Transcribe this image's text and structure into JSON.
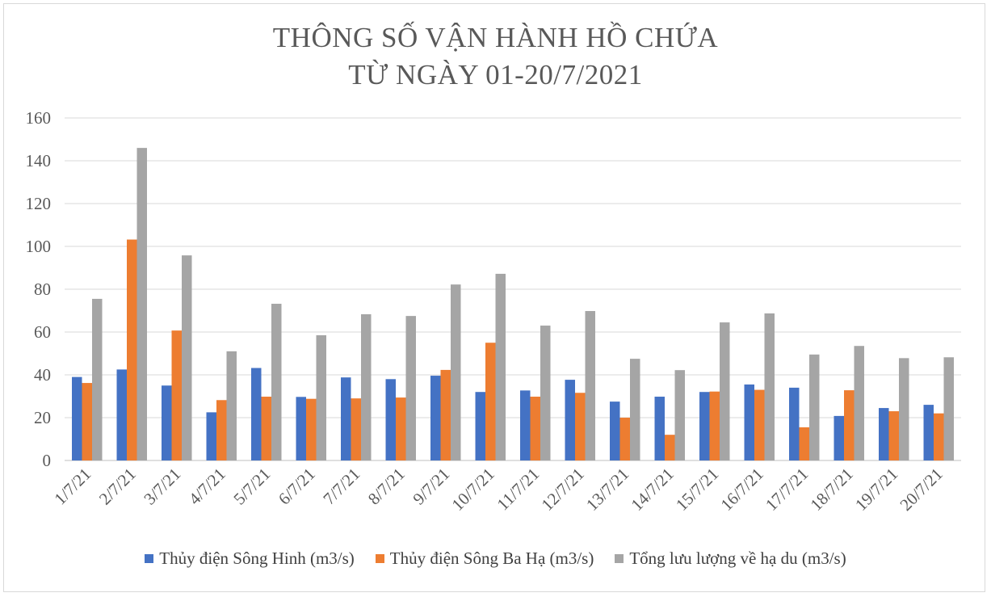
{
  "chart_data": {
    "type": "bar",
    "title_line1": "THÔNG SỐ VẬN HÀNH HỒ CHỨA",
    "title_line2": "TỪ NGÀY 01-20/7/2021",
    "categories": [
      "1/7/21",
      "2/7/21",
      "3/7/21",
      "4/7/21",
      "5/7/21",
      "6/7/21",
      "7/7/21",
      "8/7/21",
      "9/7/21",
      "10/7/21",
      "11/7/21",
      "12/7/21",
      "13/7/21",
      "14/7/21",
      "15/7/21",
      "16/7/21",
      "17/7/21",
      "18/7/21",
      "19/7/21",
      "20/7/21"
    ],
    "series": [
      {
        "name": "Thủy điện Sông Hinh (m3/s)",
        "color": "#4472c4",
        "values": [
          39,
          42.5,
          35,
          22.5,
          43.2,
          29.7,
          38.8,
          38,
          39.6,
          32,
          32.7,
          37.7,
          27.5,
          29.8,
          32,
          35.5,
          34,
          20.8,
          24.5,
          26
        ]
      },
      {
        "name": "Thủy điện Sông Ba Hạ (m3/s)",
        "color": "#ed7d31",
        "values": [
          36.2,
          103.2,
          60.7,
          28.2,
          29.8,
          28.8,
          29,
          29.4,
          42.3,
          55,
          29.8,
          31.6,
          20,
          12,
          32.2,
          33,
          15.5,
          32.8,
          23,
          22
        ]
      },
      {
        "name": "Tổng lưu lượng về hạ du (m3/s)",
        "color": "#a5a5a5",
        "values": [
          75.5,
          146,
          95.8,
          51,
          73.2,
          58.5,
          68.3,
          67.5,
          82.2,
          87.2,
          63,
          69.8,
          47.5,
          42.2,
          64.5,
          68.7,
          49.5,
          53.5,
          47.8,
          48.2
        ]
      }
    ],
    "ylim": [
      0,
      160
    ],
    "yticks": [
      0,
      20,
      40,
      60,
      80,
      100,
      120,
      140,
      160
    ],
    "grid": true,
    "legend_position": "bottom"
  }
}
